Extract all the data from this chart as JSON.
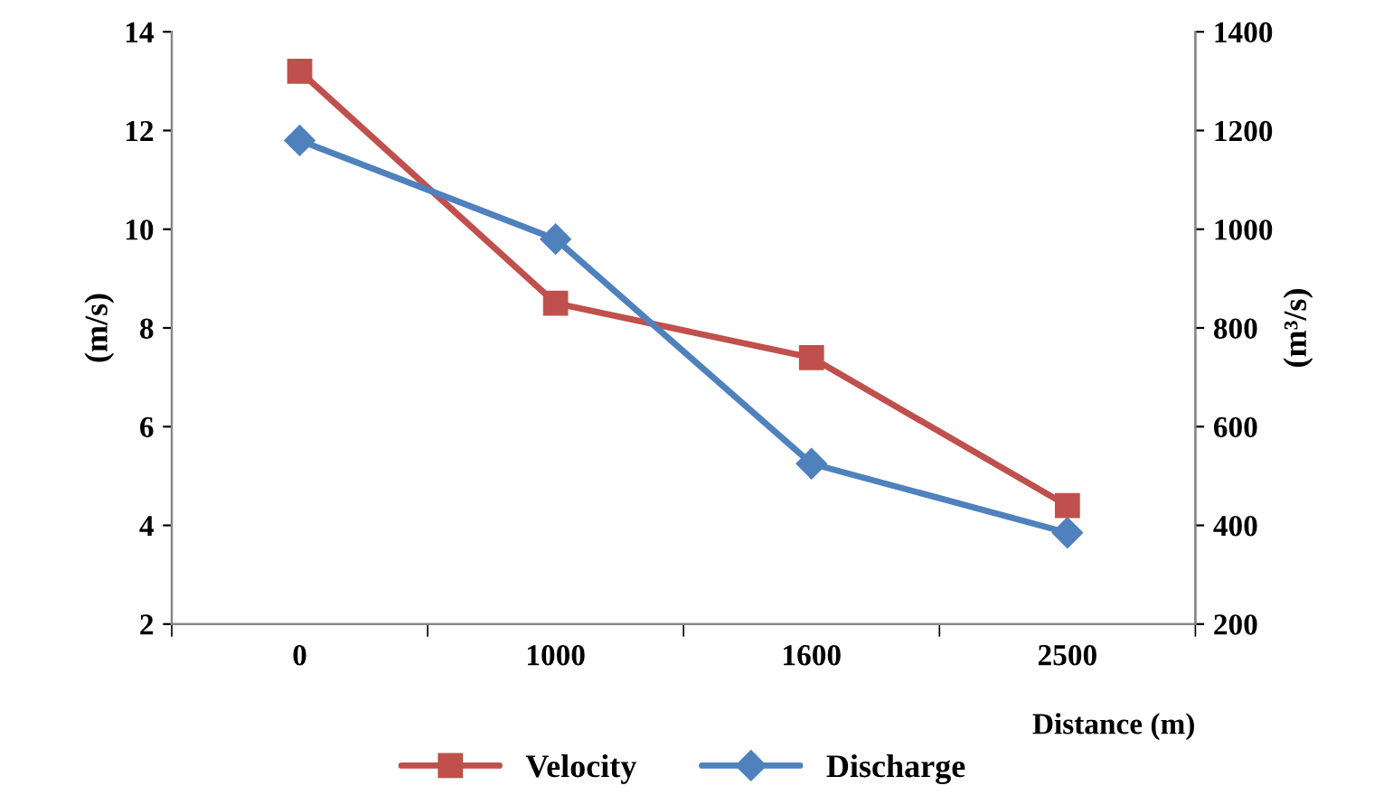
{
  "chart_data": {
    "type": "line",
    "xlabel": "Distance (m)",
    "ylabel": "(m/s)",
    "y2label": "(m³/s)",
    "categories": [
      "0",
      "1000",
      "1600",
      "2500"
    ],
    "series": [
      {
        "name": "Velocity",
        "color": "#c0504d",
        "marker": "square",
        "values": [
          13.2,
          8.5,
          7.4,
          4.4
        ]
      },
      {
        "name": "Discharge",
        "color": "#4f81bd",
        "marker": "diamond",
        "axis": "y2",
        "values": [
          1180,
          980,
          525,
          385
        ]
      }
    ],
    "ylim": [
      2,
      14
    ],
    "yticks": [
      2,
      4,
      6,
      8,
      10,
      12,
      14
    ],
    "y2lim": [
      200,
      1400
    ],
    "y2ticks": [
      200,
      400,
      600,
      800,
      1000,
      1200,
      1400
    ],
    "grid": false,
    "legend": "bottom",
    "line_style": "solid"
  }
}
